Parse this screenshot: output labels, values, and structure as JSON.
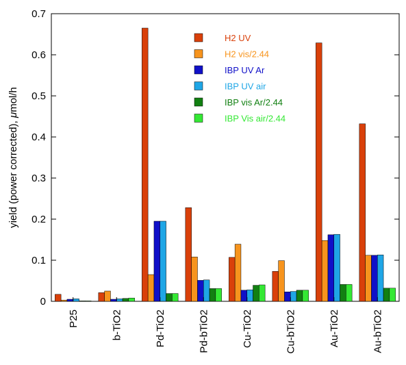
{
  "chart_data": {
    "type": "bar",
    "ylabel": "yield (power corrected), μmol/h",
    "ylabel_parts": [
      "yield (power corrected), ",
      "μ",
      "mol/h"
    ],
    "ylim": [
      0,
      0.7
    ],
    "yticks": [
      "0",
      "0.1",
      "0.2",
      "0.3",
      "0.4",
      "0.5",
      "0.6",
      "0.7"
    ],
    "grid": false,
    "legend_position": "top-center",
    "categories": [
      "P25",
      "b-TiO2",
      "Pd-TiO2",
      "Pd-bTiO2",
      "Cu-TiO2",
      "Cu-bTiO2",
      "Au-TiO2",
      "Au-bTiO2"
    ],
    "series": [
      {
        "name": "H2 UV",
        "color": "#d9400a",
        "values": [
          0.017,
          0.021,
          0.665,
          0.228,
          0.107,
          0.073,
          0.629,
          0.432
        ]
      },
      {
        "name": "H2 vis/2.44",
        "color": "#f7941d",
        "values": [
          0.003,
          0.025,
          0.065,
          0.108,
          0.139,
          0.099,
          0.148,
          0.112
        ]
      },
      {
        "name": "IBP UV Ar",
        "color": "#1010c8",
        "values": [
          0.005,
          0.005,
          0.195,
          0.051,
          0.027,
          0.023,
          0.162,
          0.112
        ]
      },
      {
        "name": "IBP UV air",
        "color": "#1fa6e6",
        "values": [
          0.006,
          0.006,
          0.195,
          0.052,
          0.028,
          0.024,
          0.163,
          0.113
        ]
      },
      {
        "name": "IBP vis Ar/2.44",
        "color": "#128012",
        "values": [
          0.001,
          0.007,
          0.019,
          0.031,
          0.039,
          0.027,
          0.041,
          0.032
        ]
      },
      {
        "name": "IBP Vis air/2.44",
        "color": "#34e834",
        "values": [
          0.001,
          0.008,
          0.019,
          0.031,
          0.04,
          0.027,
          0.041,
          0.032
        ]
      }
    ]
  }
}
